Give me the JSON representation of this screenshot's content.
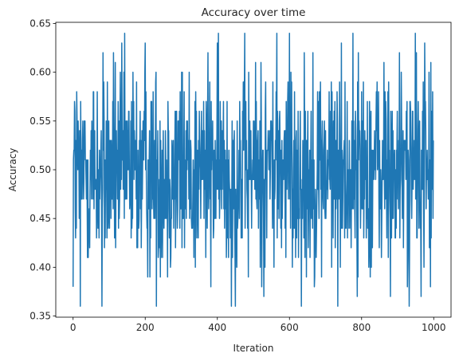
{
  "chart_data": {
    "type": "line",
    "title": "Accuracy over time",
    "xlabel": "Iteration",
    "ylabel": "Accuracy",
    "xlim": [
      -48,
      1048
    ],
    "ylim": [
      0.3488,
      0.6512
    ],
    "xticks": [
      0,
      200,
      400,
      600,
      800,
      1000
    ],
    "xtick_labels": [
      "0",
      "200",
      "400",
      "600",
      "800",
      "1000"
    ],
    "yticks": [
      0.35,
      0.4,
      0.45,
      0.5,
      0.55,
      0.6,
      0.65
    ],
    "ytick_labels": [
      "0.35",
      "0.40",
      "0.45",
      "0.50",
      "0.55",
      "0.60",
      "0.65"
    ],
    "grid": false,
    "series": [
      {
        "color": "#1f77b4",
        "n_points": 1000,
        "x_start": 0,
        "x_step": 1,
        "min": 0.36,
        "max": 0.64,
        "step": 0.01,
        "mean": 0.5,
        "notable_values": [
          {
            "x": 0,
            "y": 0.38
          },
          {
            "x": 20,
            "y": 0.36
          },
          {
            "x": 80,
            "y": 0.36
          },
          {
            "x": 135,
            "y": 0.63
          },
          {
            "x": 200,
            "y": 0.63
          },
          {
            "x": 450,
            "y": 0.36
          },
          {
            "x": 565,
            "y": 0.64
          },
          {
            "x": 600,
            "y": 0.64
          },
          {
            "x": 880,
            "y": 0.37
          },
          {
            "x": 975,
            "y": 0.63
          },
          {
            "x": 999,
            "y": 0.53
          }
        ]
      }
    ]
  }
}
